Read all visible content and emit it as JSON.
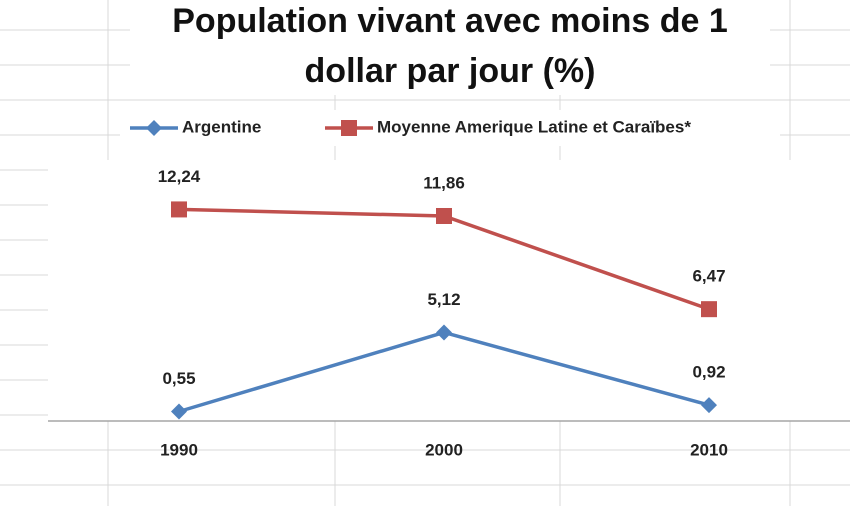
{
  "chart_data": {
    "type": "line",
    "title": "Population vivant avec moins de 1 dollar par jour (%)",
    "categories": [
      "1990",
      "2000",
      "2010"
    ],
    "series": [
      {
        "name": "Argentine",
        "color": "#4f81bd",
        "marker": "diamond",
        "values": [
          0.55,
          5.12,
          0.92
        ],
        "value_labels": [
          "0,55",
          "5,12",
          "0,92"
        ]
      },
      {
        "name": "Moyenne Amerique Latine et Caraïbes*",
        "color": "#c0504d",
        "marker": "square",
        "values": [
          12.24,
          11.86,
          6.47
        ],
        "value_labels": [
          "12,24",
          "11,86",
          "6,47"
        ]
      }
    ],
    "ylim": [
      0,
      14
    ],
    "legend": "top"
  }
}
